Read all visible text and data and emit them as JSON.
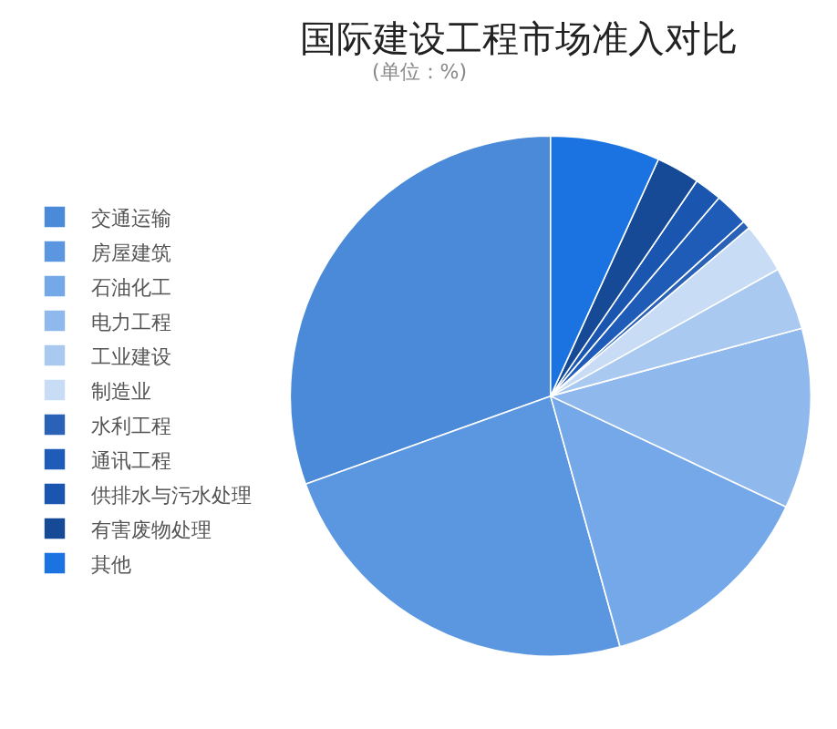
{
  "chart_data": {
    "type": "pie",
    "title": "国际建设工程市场准入对比",
    "subtitle": "(单位：%)",
    "categories": [
      "交通运输",
      "房屋建筑",
      "石油化工",
      "电力工程",
      "工业建设",
      "制造业",
      "水利工程",
      "通讯工程",
      "供排水与污水处理",
      "有害废物处理",
      "其他"
    ],
    "values": [
      30.5,
      23.8,
      13.7,
      11.2,
      3.9,
      3.1,
      0.5,
      2.1,
      1.7,
      2.7,
      6.8
    ],
    "colors": [
      "#4a8ad8",
      "#5b96e0",
      "#75a8e8",
      "#8fb8ec",
      "#a9c9f0",
      "#c8dcf5",
      "#2a62b8",
      "#1f5cb8",
      "#1a56b0",
      "#174a96",
      "#1a73e0"
    ],
    "legend": "left"
  }
}
